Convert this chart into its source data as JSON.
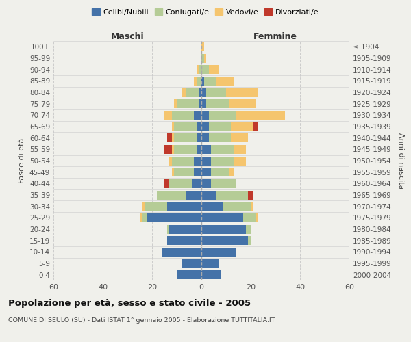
{
  "age_groups": [
    "0-4",
    "5-9",
    "10-14",
    "15-19",
    "20-24",
    "25-29",
    "30-34",
    "35-39",
    "40-44",
    "45-49",
    "50-54",
    "55-59",
    "60-64",
    "65-69",
    "70-74",
    "75-79",
    "80-84",
    "85-89",
    "90-94",
    "95-99",
    "100+"
  ],
  "birth_years": [
    "2000-2004",
    "1995-1999",
    "1990-1994",
    "1985-1989",
    "1980-1984",
    "1975-1979",
    "1970-1974",
    "1965-1969",
    "1960-1964",
    "1955-1959",
    "1950-1954",
    "1945-1949",
    "1940-1944",
    "1935-1939",
    "1930-1934",
    "1925-1929",
    "1920-1924",
    "1915-1919",
    "1910-1914",
    "1905-1909",
    "≤ 1904"
  ],
  "male": {
    "celibi": [
      10,
      8,
      16,
      14,
      13,
      22,
      14,
      6,
      4,
      3,
      3,
      2,
      2,
      2,
      3,
      1,
      1,
      0,
      0,
      0,
      0
    ],
    "coniugati": [
      0,
      0,
      0,
      0,
      1,
      2,
      9,
      12,
      9,
      8,
      9,
      9,
      9,
      9,
      9,
      9,
      5,
      2,
      1,
      0,
      0
    ],
    "vedovi": [
      0,
      0,
      0,
      0,
      0,
      1,
      1,
      0,
      0,
      1,
      1,
      1,
      1,
      1,
      3,
      1,
      2,
      1,
      1,
      0,
      0
    ],
    "divorziati": [
      0,
      0,
      0,
      0,
      0,
      0,
      0,
      0,
      2,
      0,
      0,
      3,
      2,
      0,
      0,
      0,
      0,
      0,
      0,
      0,
      0
    ]
  },
  "female": {
    "nubili": [
      8,
      7,
      14,
      19,
      18,
      17,
      9,
      6,
      4,
      4,
      4,
      4,
      3,
      3,
      3,
      2,
      2,
      1,
      0,
      0,
      0
    ],
    "coniugate": [
      0,
      0,
      0,
      1,
      2,
      5,
      11,
      13,
      10,
      7,
      9,
      9,
      9,
      9,
      11,
      9,
      8,
      5,
      3,
      1,
      0
    ],
    "vedove": [
      0,
      0,
      0,
      0,
      0,
      1,
      1,
      0,
      0,
      2,
      5,
      5,
      7,
      9,
      20,
      11,
      13,
      7,
      4,
      1,
      1
    ],
    "divorziate": [
      0,
      0,
      0,
      0,
      0,
      0,
      0,
      2,
      0,
      0,
      0,
      0,
      0,
      2,
      0,
      0,
      0,
      0,
      0,
      0,
      0
    ]
  },
  "colors": {
    "celibi": "#4472a8",
    "coniugati": "#b5cc96",
    "vedovi": "#f5c56e",
    "divorziati": "#c0392b"
  },
  "xlim": 60,
  "title": "Popolazione per età, sesso e stato civile - 2005",
  "subtitle": "COMUNE DI SEULO (SU) - Dati ISTAT 1° gennaio 2005 - Elaborazione TUTTITALIA.IT",
  "ylabel_left": "Fasce di età",
  "ylabel_right": "Anni di nascita",
  "xlabel_left": "Maschi",
  "xlabel_right": "Femmine",
  "background_color": "#f0f0eb"
}
